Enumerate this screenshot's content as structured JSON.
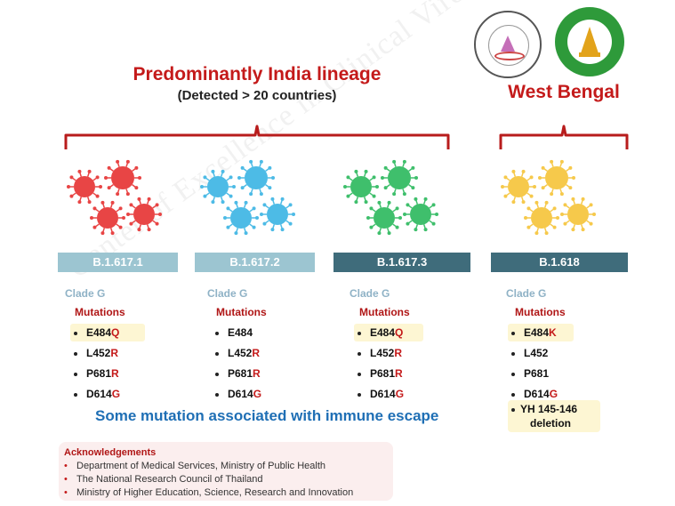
{
  "header": {
    "main_title": "Predominantly India lineage",
    "sub_title": "(Detected > 20 countries)",
    "west_bengal": "West Bengal"
  },
  "watermark": "Center of Excellence in Clinical Virology Chulalongkorn University",
  "logos": [
    {
      "name": "center-of-excellence-logo",
      "color": "#c56fb8"
    },
    {
      "name": "chulalongkorn-medicine-logo",
      "color": "#2e9a3a"
    }
  ],
  "colors": {
    "virus_red": "#e84545",
    "virus_blue": "#4dbbe6",
    "virus_green": "#3fbf6c",
    "virus_yellow": "#f6c94b",
    "bracket": "#b81c1c",
    "bar_light": "#9cc5d1",
    "bar_dark": "#3f6c7b"
  },
  "lineages": [
    {
      "name": "B.1.617.1",
      "clade": "Clade G",
      "mutations_label": "Mutations",
      "bar_color": "#9cc5d1",
      "virus_color": "#e84545",
      "mutations": [
        {
          "base": "E484",
          "suffix": "Q",
          "highlight": true
        },
        {
          "base": "L452",
          "suffix": "R",
          "highlight": false
        },
        {
          "base": "P681",
          "suffix": "R",
          "highlight": false
        },
        {
          "base": "D614",
          "suffix": "G",
          "highlight": false
        }
      ]
    },
    {
      "name": "B.1.617.2",
      "clade": "Clade G",
      "mutations_label": "Mutations",
      "bar_color": "#9cc5d1",
      "virus_color": "#4dbbe6",
      "mutations": [
        {
          "base": "E484",
          "suffix": "",
          "highlight": false
        },
        {
          "base": "L452",
          "suffix": "R",
          "highlight": false
        },
        {
          "base": "P681",
          "suffix": "R",
          "highlight": false
        },
        {
          "base": "D614",
          "suffix": "G",
          "highlight": false
        }
      ]
    },
    {
      "name": "B.1.617.3",
      "clade": "Clade G",
      "mutations_label": "Mutations",
      "bar_color": "#3f6c7b",
      "virus_color": "#3fbf6c",
      "mutations": [
        {
          "base": "E484",
          "suffix": "Q",
          "highlight": true
        },
        {
          "base": "L452",
          "suffix": "R",
          "highlight": false
        },
        {
          "base": "P681",
          "suffix": "R",
          "highlight": false
        },
        {
          "base": "D614",
          "suffix": "G",
          "highlight": false
        }
      ]
    },
    {
      "name": "B.1.618",
      "clade": "Clade G",
      "mutations_label": "Mutations",
      "bar_color": "#3f6c7b",
      "virus_color": "#f6c94b",
      "mutations": [
        {
          "base": "E484",
          "suffix": "K",
          "highlight": true
        },
        {
          "base": "L452",
          "suffix": "",
          "highlight": false
        },
        {
          "base": "P681",
          "suffix": "",
          "highlight": false
        },
        {
          "base": "D614",
          "suffix": "G",
          "highlight": false
        }
      ],
      "deletion": {
        "line1": "YH 145-146",
        "line2": "deletion"
      }
    }
  ],
  "immune_escape": "Some mutation associated with immune escape",
  "acknowledgements": {
    "title": "Acknowledgements",
    "items": [
      "Department of Medical Services, Ministry of Public Health",
      "The National Research Council of Thailand",
      "Ministry of Higher Education, Science, Research and Innovation"
    ]
  }
}
